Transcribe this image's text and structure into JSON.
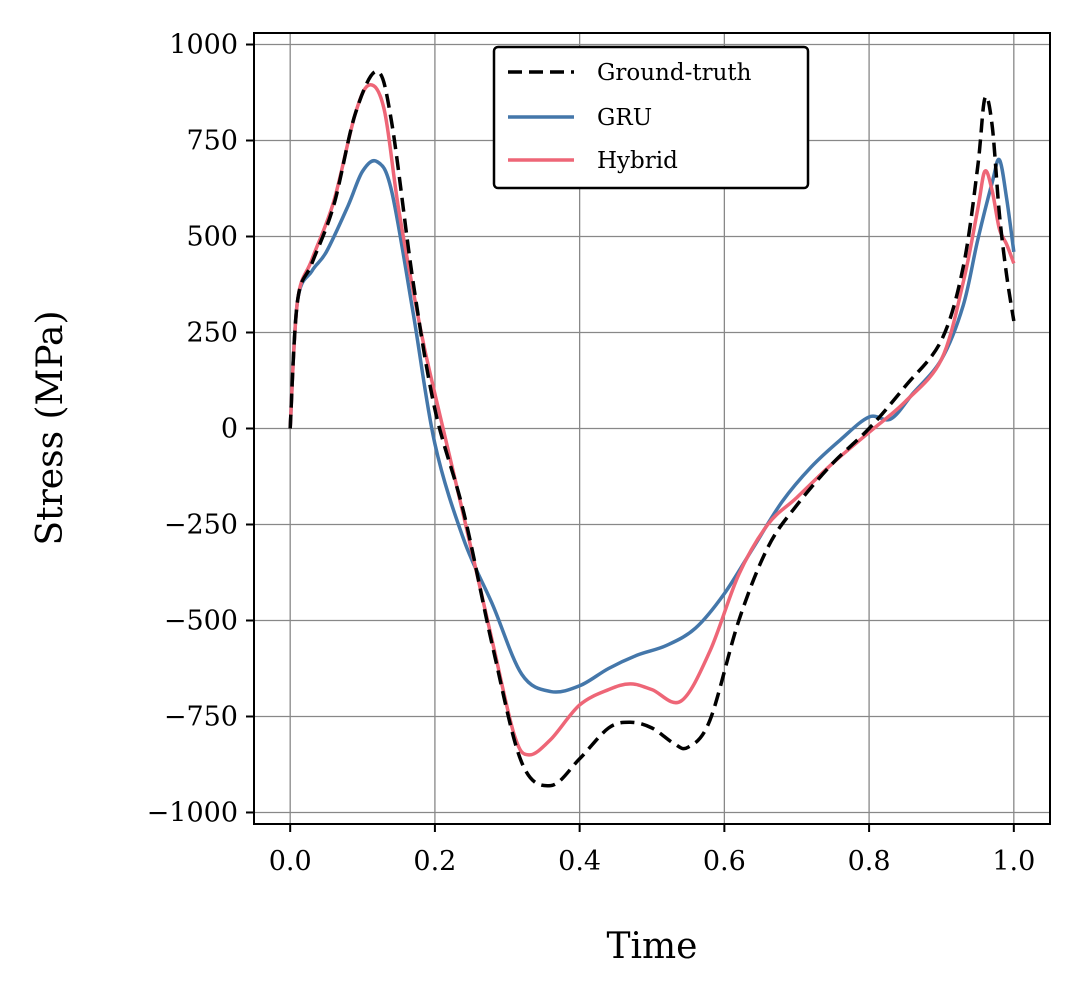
{
  "chart_data": {
    "type": "line",
    "title": "",
    "xlabel": "Time",
    "ylabel": "Stress (MPa)",
    "xlim": [
      -0.05,
      1.05
    ],
    "ylim": [
      -1030,
      1030
    ],
    "grid": true,
    "legend_position": "top-center",
    "x_ticks": [
      0.0,
      0.2,
      0.4,
      0.6,
      0.8,
      1.0
    ],
    "x_tick_labels": [
      "0.0",
      "0.2",
      "0.4",
      "0.6",
      "0.8",
      "1.0"
    ],
    "y_ticks": [
      1000,
      750,
      500,
      250,
      0,
      -250,
      -500,
      -750,
      -1000
    ],
    "y_tick_labels": [
      "1000",
      "750",
      "500",
      "250",
      "0",
      "−250",
      "−500",
      "−750",
      "−1000"
    ],
    "series": [
      {
        "name": "Ground-truth",
        "color": "#000000",
        "style": "dashed",
        "x": [
          0.0,
          0.01,
          0.03,
          0.06,
          0.09,
          0.12,
          0.14,
          0.17,
          0.2,
          0.24,
          0.28,
          0.32,
          0.36,
          0.4,
          0.44,
          0.47,
          0.5,
          0.53,
          0.55,
          0.58,
          0.62,
          0.66,
          0.7,
          0.75,
          0.8,
          0.85,
          0.9,
          0.93,
          0.95,
          0.96,
          0.97,
          0.98,
          0.99,
          1.0
        ],
        "values": [
          0,
          330,
          430,
          580,
          820,
          930,
          800,
          380,
          50,
          -220,
          -570,
          -870,
          -930,
          -860,
          -780,
          -765,
          -780,
          -820,
          -830,
          -760,
          -500,
          -310,
          -200,
          -90,
          0,
          110,
          230,
          420,
          680,
          860,
          790,
          560,
          400,
          280
        ]
      },
      {
        "name": "GRU",
        "color": "#4477aa",
        "style": "solid",
        "x": [
          0.0,
          0.01,
          0.03,
          0.05,
          0.08,
          0.1,
          0.12,
          0.14,
          0.17,
          0.2,
          0.24,
          0.28,
          0.32,
          0.36,
          0.4,
          0.44,
          0.48,
          0.52,
          0.56,
          0.6,
          0.64,
          0.68,
          0.72,
          0.76,
          0.8,
          0.83,
          0.86,
          0.9,
          0.93,
          0.95,
          0.97,
          0.98,
          0.99,
          1.0
        ],
        "values": [
          0,
          330,
          410,
          460,
          580,
          670,
          695,
          620,
          300,
          -40,
          -290,
          -460,
          -640,
          -685,
          -670,
          -625,
          -590,
          -565,
          -520,
          -430,
          -310,
          -190,
          -100,
          -30,
          30,
          25,
          90,
          180,
          320,
          490,
          640,
          700,
          600,
          460
        ]
      },
      {
        "name": "Hybrid",
        "color": "#ee6677",
        "style": "solid",
        "x": [
          0.0,
          0.01,
          0.03,
          0.06,
          0.09,
          0.11,
          0.13,
          0.15,
          0.18,
          0.2,
          0.24,
          0.28,
          0.31,
          0.33,
          0.36,
          0.4,
          0.44,
          0.47,
          0.5,
          0.54,
          0.58,
          0.62,
          0.66,
          0.7,
          0.75,
          0.8,
          0.85,
          0.9,
          0.93,
          0.95,
          0.96,
          0.97,
          0.98,
          0.99,
          1.0
        ],
        "values": [
          0,
          330,
          440,
          590,
          820,
          895,
          830,
          570,
          260,
          90,
          -230,
          -560,
          -800,
          -850,
          -810,
          -720,
          -680,
          -665,
          -680,
          -710,
          -580,
          -380,
          -250,
          -180,
          -90,
          -10,
          70,
          180,
          380,
          570,
          670,
          620,
          520,
          480,
          430
        ]
      }
    ]
  }
}
